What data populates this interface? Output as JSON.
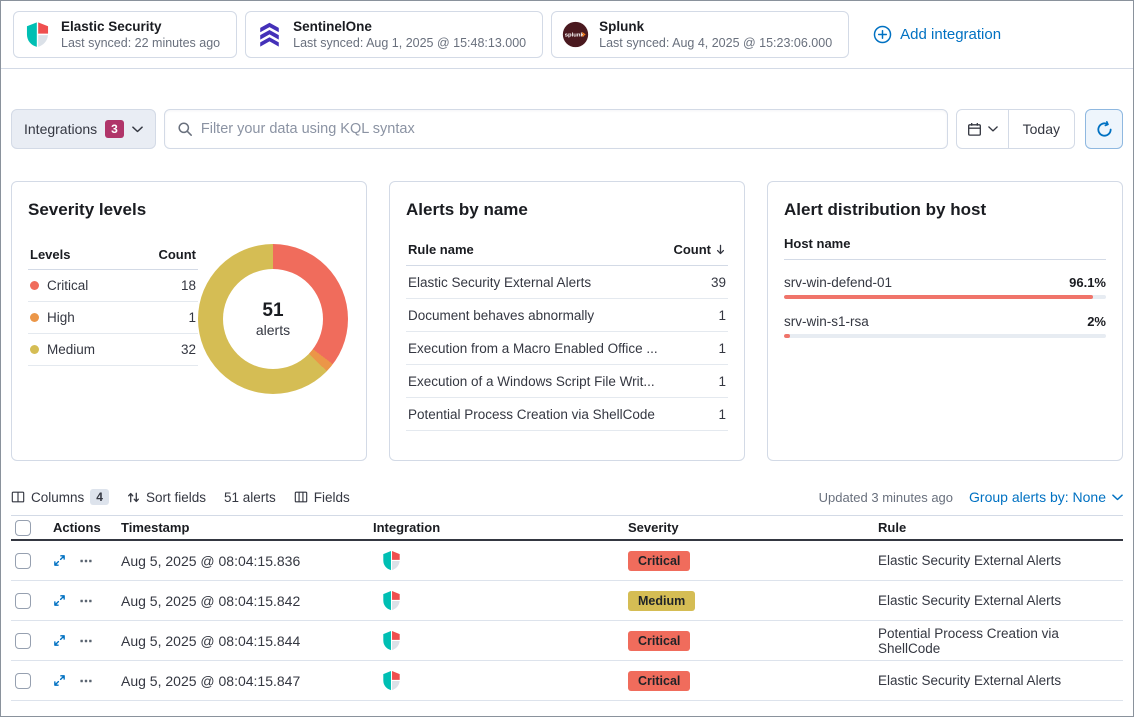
{
  "colors": {
    "primary": "#0071c2",
    "filter_badge": "#b03569",
    "bar": "#f0746a"
  },
  "severity_colors": {
    "Critical": "#f06c5c",
    "High": "#eb9648",
    "Medium": "#d5bd54"
  },
  "topbar": {
    "cards": [
      {
        "name": "Elastic Security",
        "synced": "Last synced: 22 minutes ago"
      },
      {
        "name": "SentinelOne",
        "synced": "Last synced: Aug 1, 2025 @ 15:48:13.000"
      },
      {
        "name": "Splunk",
        "synced": "Last synced: Aug 4, 2025 @ 15:23:06.000"
      }
    ],
    "add_integration": "Add integration"
  },
  "filter_bar": {
    "integrations_label": "Integrations",
    "integrations_count": "3",
    "search_placeholder": "Filter your data using KQL syntax",
    "today": "Today"
  },
  "severity_panel": {
    "title": "Severity levels",
    "col_levels": "Levels",
    "col_count": "Count",
    "rows": [
      {
        "label": "Critical",
        "count": "18"
      },
      {
        "label": "High",
        "count": "1"
      },
      {
        "label": "Medium",
        "count": "32"
      }
    ],
    "total": "51",
    "unit": "alerts"
  },
  "alerts_by_name": {
    "title": "Alerts by name",
    "col_rule": "Rule name",
    "col_count": "Count",
    "rows": [
      {
        "rule": "Elastic Security External Alerts",
        "count": "39"
      },
      {
        "rule": "Document behaves abnormally",
        "count": "1"
      },
      {
        "rule": "Execution from a Macro Enabled Office ...",
        "count": "1"
      },
      {
        "rule": "Execution of a Windows Script File Writ...",
        "count": "1"
      },
      {
        "rule": "Potential Process Creation via ShellCode",
        "count": "1"
      }
    ]
  },
  "host_panel": {
    "title": "Alert distribution by host",
    "col_host": "Host name",
    "rows": [
      {
        "host": "srv-win-defend-01",
        "pct": "96.1%",
        "value": 96.1
      },
      {
        "host": "srv-win-s1-rsa",
        "pct": "2%",
        "value": 2
      }
    ]
  },
  "table_section": {
    "columns_label": "Columns",
    "columns_count": "4",
    "sort_label": "Sort fields",
    "alert_count": "51 alerts",
    "fields_label": "Fields",
    "updated": "Updated 3 minutes ago",
    "group_by": "Group alerts by: None",
    "headers": {
      "actions": "Actions",
      "timestamp": "Timestamp",
      "integration": "Integration",
      "severity": "Severity",
      "rule": "Rule"
    },
    "rows": [
      {
        "timestamp": "Aug 5, 2025 @ 08:04:15.836",
        "severity": "Critical",
        "rule": "Elastic Security External Alerts"
      },
      {
        "timestamp": "Aug 5, 2025 @ 08:04:15.842",
        "severity": "Medium",
        "rule": "Elastic Security External Alerts"
      },
      {
        "timestamp": "Aug 5, 2025 @ 08:04:15.844",
        "severity": "Critical",
        "rule": "Potential Process Creation via ShellCode"
      },
      {
        "timestamp": "Aug 5, 2025 @ 08:04:15.847",
        "severity": "Critical",
        "rule": "Elastic Security External Alerts"
      }
    ]
  },
  "chart_data": [
    {
      "type": "pie",
      "donut": true,
      "title": "Severity levels",
      "labels": [
        "Critical",
        "High",
        "Medium"
      ],
      "values": [
        18,
        1,
        32
      ],
      "colors": [
        "#f06c5c",
        "#eb9648",
        "#d5bd54"
      ],
      "total": 51,
      "center_label": "51 alerts"
    },
    {
      "type": "bar",
      "orientation": "horizontal",
      "title": "Alert distribution by host",
      "categories": [
        "srv-win-defend-01",
        "srv-win-s1-rsa"
      ],
      "values": [
        96.1,
        2
      ],
      "value_labels": [
        "96.1%",
        "2%"
      ],
      "xlim": [
        0,
        100
      ],
      "color": "#f0746a"
    },
    {
      "type": "table",
      "title": "Alerts by name",
      "columns": [
        "Rule name",
        "Count"
      ],
      "rows": [
        [
          "Elastic Security External Alerts",
          39
        ],
        [
          "Document behaves abnormally",
          1
        ],
        [
          "Execution from a Macro Enabled Office ...",
          1
        ],
        [
          "Execution of a Windows Script File Writ...",
          1
        ],
        [
          "Potential Process Creation via ShellCode",
          1
        ]
      ],
      "sort": {
        "column": "Count",
        "direction": "desc"
      }
    }
  ]
}
